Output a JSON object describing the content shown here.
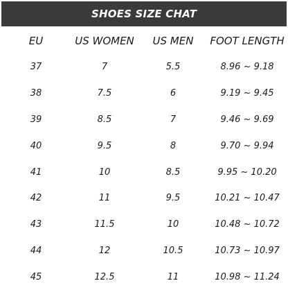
{
  "title": "SHOES SIZE CHAT",
  "headers": [
    "EU",
    "US WOMEN",
    "US MEN",
    "FOOT LENGTH"
  ],
  "rows": [
    [
      "37",
      "7",
      "5.5",
      "8.96 ~ 9.18"
    ],
    [
      "38",
      "7.5",
      "6",
      "9.19 ~ 9.45"
    ],
    [
      "39",
      "8.5",
      "7",
      "9.46 ~ 9.69"
    ],
    [
      "40",
      "9.5",
      "8",
      "9.70 ~ 9.94"
    ],
    [
      "41",
      "10",
      "8.5",
      "9.95 ~ 10.20"
    ],
    [
      "42",
      "11",
      "9.5",
      "10.21 ~ 10.47"
    ],
    [
      "43",
      "11.5",
      "10",
      "10.48 ~ 10.72"
    ],
    [
      "44",
      "12",
      "10.5",
      "10.73 ~ 10.97"
    ],
    [
      "45",
      "12.5",
      "11",
      "10.98 ~ 11.24"
    ]
  ],
  "colors": {
    "header_bg": "#3a3a3a",
    "header_text": "#ffffff",
    "text": "#1a1a1a"
  }
}
